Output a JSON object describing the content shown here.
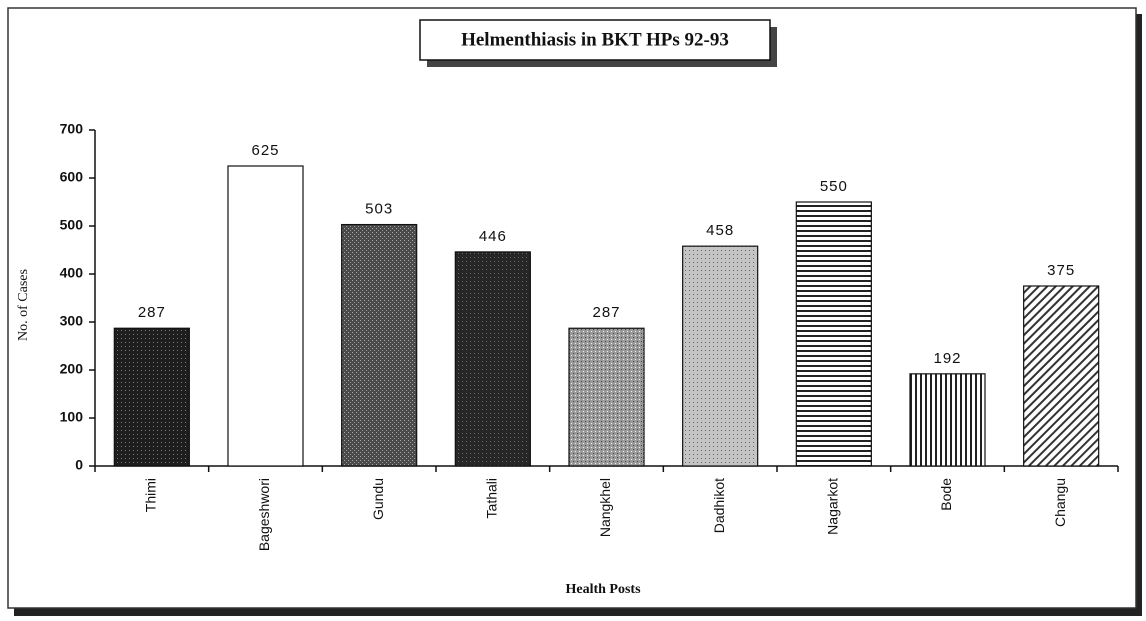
{
  "chart_data": {
    "type": "bar",
    "title": "Helmenthiasis in BKT HPs 92-93",
    "x_label": "Health Posts",
    "y_label": "No. of Cases",
    "categories": [
      "Thimi",
      "Bageshwori",
      "Gundu",
      "Tathali",
      "Nangkhel",
      "Dadhikot",
      "Nagarkot",
      "Bode",
      "Changu"
    ],
    "values": [
      287,
      625,
      503,
      446,
      287,
      458,
      550,
      192,
      375
    ],
    "ylim": [
      0,
      700
    ],
    "yticks": [
      0,
      100,
      200,
      300,
      400,
      500,
      600,
      700
    ],
    "grid": false
  }
}
